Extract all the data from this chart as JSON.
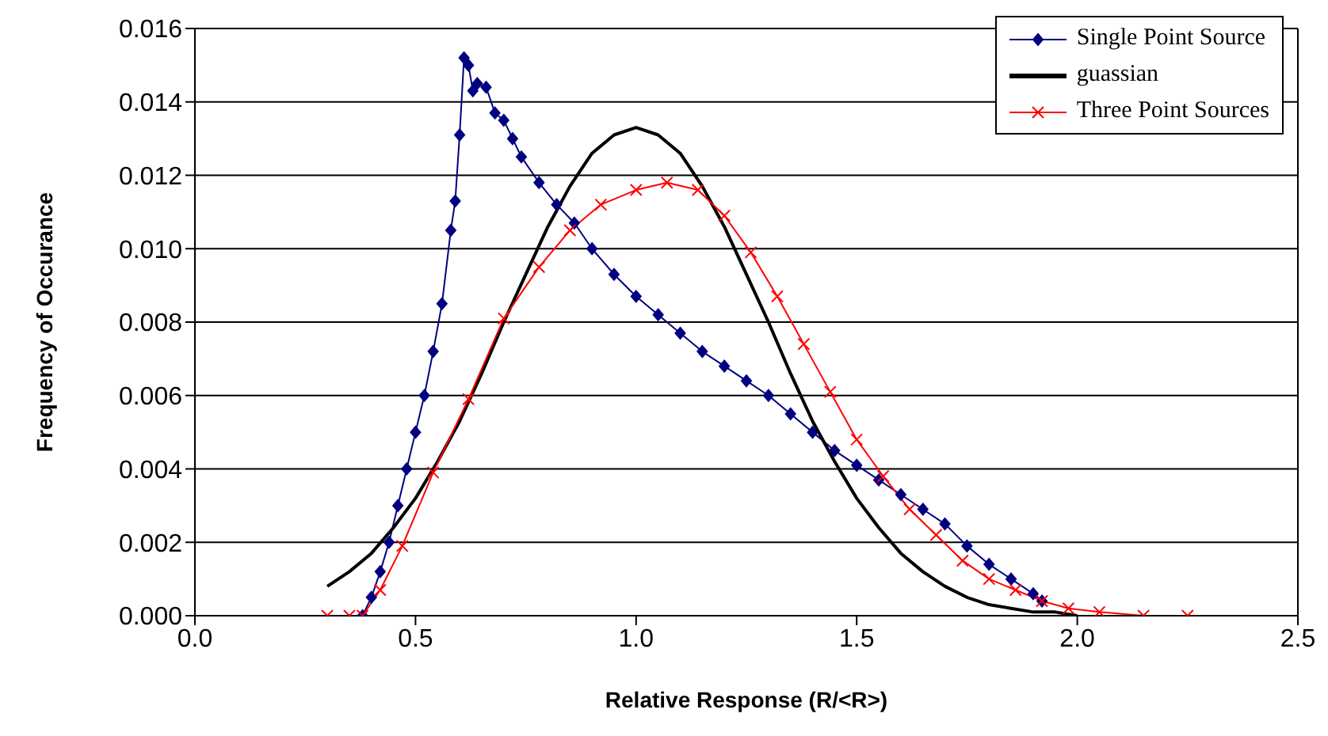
{
  "chart_data": {
    "type": "line",
    "xlabel": "Relative Response (R/<R>)",
    "ylabel": "Frequency of Occurance",
    "xlim": [
      0,
      2.5
    ],
    "ylim": [
      0,
      0.016
    ],
    "xticks": [
      {
        "value": 0,
        "label": "0.0"
      },
      {
        "value": 0.5,
        "label": "0.5"
      },
      {
        "value": 1,
        "label": "1.0"
      },
      {
        "value": 1.5,
        "label": "1.5"
      },
      {
        "value": 2,
        "label": "2.0"
      },
      {
        "value": 2.5,
        "label": "2.5"
      }
    ],
    "yticks": [
      {
        "value": 0,
        "label": "0.000"
      },
      {
        "value": 0.002,
        "label": "0.002"
      },
      {
        "value": 0.004,
        "label": "0.004"
      },
      {
        "value": 0.006,
        "label": "0.006"
      },
      {
        "value": 0.008,
        "label": "0.008"
      },
      {
        "value": 0.01,
        "label": "0.010"
      },
      {
        "value": 0.012,
        "label": "0.012"
      },
      {
        "value": 0.014,
        "label": "0.014"
      },
      {
        "value": 0.016,
        "label": "0.016"
      }
    ],
    "grid": "y",
    "legend": "top right",
    "line_style": "solid",
    "series": [
      {
        "name": "Single Point Source",
        "color": "#000080",
        "marker": "diamond",
        "x": [
          0.38,
          0.4,
          0.42,
          0.44,
          0.46,
          0.48,
          0.5,
          0.52,
          0.54,
          0.56,
          0.58,
          0.59,
          0.6,
          0.61,
          0.62,
          0.63,
          0.64,
          0.66,
          0.68,
          0.7,
          0.72,
          0.74,
          0.78,
          0.82,
          0.86,
          0.9,
          0.95,
          1.0,
          1.05,
          1.1,
          1.15,
          1.2,
          1.25,
          1.3,
          1.35,
          1.4,
          1.45,
          1.5,
          1.55,
          1.6,
          1.65,
          1.7,
          1.75,
          1.8,
          1.85,
          1.9,
          1.92
        ],
        "values": [
          0.0,
          0.0005,
          0.0012,
          0.002,
          0.003,
          0.004,
          0.005,
          0.006,
          0.0072,
          0.0085,
          0.0105,
          0.0113,
          0.0131,
          0.0152,
          0.015,
          0.0143,
          0.0145,
          0.0144,
          0.0137,
          0.0135,
          0.013,
          0.0125,
          0.0118,
          0.0112,
          0.0107,
          0.01,
          0.0093,
          0.0087,
          0.0082,
          0.0077,
          0.0072,
          0.0068,
          0.0064,
          0.006,
          0.0055,
          0.005,
          0.0045,
          0.0041,
          0.0037,
          0.0033,
          0.0029,
          0.0025,
          0.0019,
          0.0014,
          0.001,
          0.0006,
          0.0004
        ]
      },
      {
        "name": "guassian",
        "color": "#000000",
        "marker": "none",
        "x": [
          0.3,
          0.35,
          0.4,
          0.45,
          0.5,
          0.55,
          0.6,
          0.65,
          0.7,
          0.75,
          0.8,
          0.85,
          0.9,
          0.95,
          1.0,
          1.05,
          1.1,
          1.15,
          1.2,
          1.25,
          1.3,
          1.35,
          1.4,
          1.45,
          1.5,
          1.55,
          1.6,
          1.65,
          1.7,
          1.75,
          1.8,
          1.85,
          1.9,
          1.95,
          2.0
        ],
        "values": [
          0.0008,
          0.0012,
          0.0017,
          0.0024,
          0.0032,
          0.0042,
          0.0053,
          0.0066,
          0.008,
          0.0093,
          0.0106,
          0.0117,
          0.0126,
          0.0131,
          0.0133,
          0.0131,
          0.0126,
          0.0117,
          0.0106,
          0.0093,
          0.008,
          0.0066,
          0.0053,
          0.0042,
          0.0032,
          0.0024,
          0.0017,
          0.0012,
          0.0008,
          0.0005,
          0.0003,
          0.0002,
          0.0001,
          0.0001,
          0.0
        ]
      },
      {
        "name": "Three Point Sources",
        "color": "#ff0000",
        "marker": "cross",
        "x": [
          0.3,
          0.35,
          0.38,
          0.42,
          0.47,
          0.54,
          0.62,
          0.7,
          0.78,
          0.85,
          0.92,
          1.0,
          1.07,
          1.14,
          1.2,
          1.26,
          1.32,
          1.38,
          1.44,
          1.5,
          1.56,
          1.62,
          1.68,
          1.74,
          1.8,
          1.86,
          1.92,
          1.98,
          2.05,
          2.15,
          2.25
        ],
        "values": [
          0.0,
          0.0,
          0.0,
          0.0007,
          0.0019,
          0.0039,
          0.0059,
          0.0081,
          0.0095,
          0.0105,
          0.0112,
          0.0116,
          0.0118,
          0.0116,
          0.0109,
          0.0099,
          0.0087,
          0.0074,
          0.0061,
          0.0048,
          0.0038,
          0.0029,
          0.0022,
          0.0015,
          0.001,
          0.0007,
          0.0004,
          0.0002,
          0.0001,
          0.0,
          0.0
        ]
      }
    ]
  }
}
